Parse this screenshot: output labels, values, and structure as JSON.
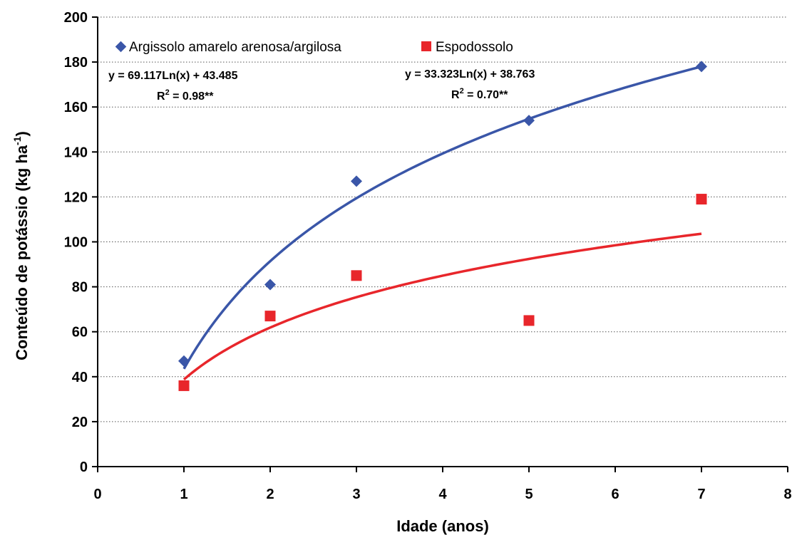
{
  "chart_data": {
    "type": "scatter",
    "xlabel": "Idade (anos)",
    "ylabel": "Conteúdo de potássio (kg ha",
    "ylabel_sup": "-1",
    "ylabel_close": ")",
    "xlim": [
      0,
      8
    ],
    "ylim": [
      0,
      200
    ],
    "xticks": [
      0,
      1,
      2,
      3,
      4,
      5,
      6,
      7,
      8
    ],
    "yticks": [
      0,
      20,
      40,
      60,
      80,
      100,
      120,
      140,
      160,
      180,
      200
    ],
    "grid": "horizontal-dotted",
    "legend_placement": "top-left",
    "series": [
      {
        "name": "Argissolo amarelo arenosa/argilosa",
        "marker": "diamond",
        "color": "#3a56a8",
        "x": [
          1,
          2,
          3,
          5,
          7
        ],
        "y": [
          47,
          81,
          127,
          154,
          178
        ],
        "trend": {
          "type": "log",
          "a": 69.117,
          "b": 43.485
        },
        "equation": "y = 69.117Ln(x) + 43.485",
        "r2_prefix": "R",
        "r2_sup": "2",
        "r2_value": " = 0.98**"
      },
      {
        "name": "Espodossolo",
        "marker": "square",
        "color": "#e8262b",
        "x": [
          1,
          2,
          3,
          5,
          7
        ],
        "y": [
          36,
          67,
          85,
          65,
          119
        ],
        "trend": {
          "type": "log",
          "a": 33.323,
          "b": 38.763
        },
        "equation": "y = 33.323Ln(x) + 38.763",
        "r2_prefix": "R",
        "r2_sup": "2",
        "r2_value": " = 0.70**"
      }
    ]
  }
}
